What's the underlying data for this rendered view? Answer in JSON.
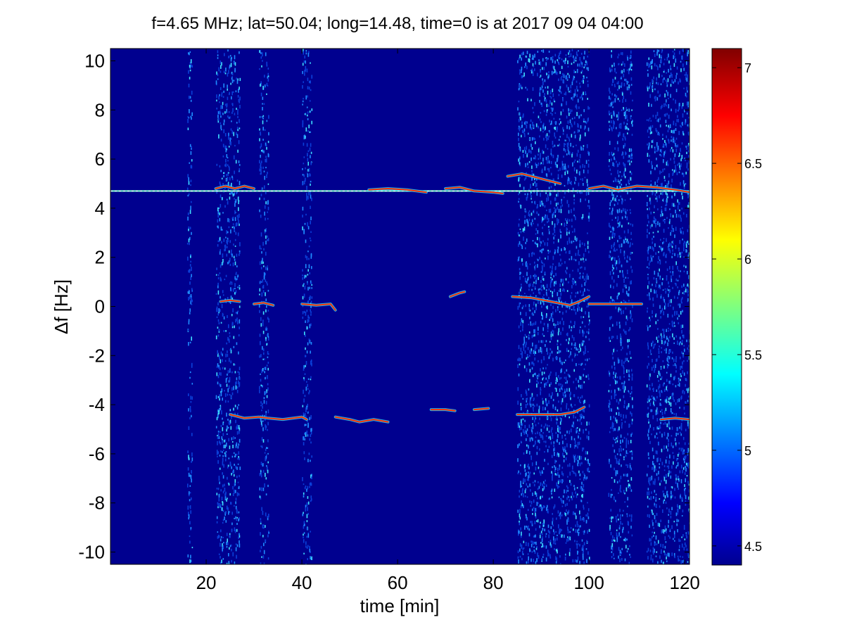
{
  "chart_data": [
    {
      "type": "heatmap",
      "title": "f=4.65 MHz;  lat=50.04; long=14.48, time=0 is at 2017 09 04 04:00",
      "xlabel": "time [min]",
      "ylabel": "Δf [Hz]",
      "xlim": [
        0,
        121
      ],
      "ylim": [
        -10.5,
        10.5
      ],
      "xticks": [
        "20",
        "40",
        "60",
        "80",
        "100",
        "120"
      ],
      "yticks": [
        "10",
        "8",
        "6",
        "4",
        "2",
        "0",
        "-2",
        "-4",
        "-6",
        "-8",
        "-10"
      ],
      "colorbar": {
        "range": [
          4.4,
          7.1
        ],
        "ticks": [
          "7",
          "6.5",
          "6",
          "5.5",
          "5",
          "4.5"
        ],
        "colormap": "jet"
      },
      "background_color": "#00008f",
      "features": [
        {
          "kind": "carrier-line",
          "y": 4.7,
          "x_range": [
            0,
            121
          ]
        },
        {
          "kind": "trace",
          "points": [
            [
              22,
              4.8
            ],
            [
              24,
              4.9
            ],
            [
              26,
              4.8
            ],
            [
              28,
              4.9
            ],
            [
              30,
              4.8
            ]
          ]
        },
        {
          "kind": "trace",
          "points": [
            [
              54,
              4.75
            ],
            [
              58,
              4.8
            ],
            [
              62,
              4.75
            ],
            [
              66,
              4.65
            ]
          ]
        },
        {
          "kind": "trace",
          "points": [
            [
              70,
              4.8
            ],
            [
              73,
              4.85
            ],
            [
              76,
              4.7
            ],
            [
              80,
              4.65
            ],
            [
              82,
              4.6
            ]
          ]
        },
        {
          "kind": "trace",
          "points": [
            [
              83,
              5.3
            ],
            [
              86,
              5.4
            ],
            [
              90,
              5.2
            ],
            [
              94,
              5.0
            ]
          ]
        },
        {
          "kind": "trace",
          "points": [
            [
              100,
              4.8
            ],
            [
              103,
              4.9
            ],
            [
              106,
              4.75
            ],
            [
              110,
              4.9
            ],
            [
              114,
              4.85
            ],
            [
              118,
              4.75
            ],
            [
              121,
              4.65
            ]
          ]
        },
        {
          "kind": "trace",
          "points": [
            [
              23,
              0.2
            ],
            [
              25,
              0.25
            ],
            [
              27,
              0.2
            ]
          ]
        },
        {
          "kind": "trace",
          "points": [
            [
              30,
              0.1
            ],
            [
              32,
              0.15
            ],
            [
              34,
              0.05
            ]
          ]
        },
        {
          "kind": "trace",
          "points": [
            [
              40,
              0.1
            ],
            [
              43,
              0.05
            ],
            [
              46,
              0.1
            ],
            [
              47,
              -0.15
            ]
          ]
        },
        {
          "kind": "trace",
          "points": [
            [
              71,
              0.4
            ],
            [
              73,
              0.55
            ],
            [
              74,
              0.6
            ]
          ]
        },
        {
          "kind": "trace",
          "points": [
            [
              84,
              0.4
            ],
            [
              88,
              0.35
            ],
            [
              92,
              0.2
            ],
            [
              96,
              0.05
            ],
            [
              98,
              0.2
            ],
            [
              100,
              0.4
            ]
          ]
        },
        {
          "kind": "trace",
          "points": [
            [
              100,
              0.1
            ],
            [
              106,
              0.1
            ],
            [
              111,
              0.1
            ]
          ]
        },
        {
          "kind": "trace",
          "points": [
            [
              25,
              -4.4
            ],
            [
              28,
              -4.55
            ],
            [
              31,
              -4.5
            ],
            [
              33,
              -4.55
            ],
            [
              36,
              -4.6
            ],
            [
              40,
              -4.5
            ],
            [
              41,
              -4.6
            ]
          ]
        },
        {
          "kind": "trace",
          "points": [
            [
              47,
              -4.5
            ],
            [
              50,
              -4.6
            ],
            [
              52,
              -4.7
            ],
            [
              55,
              -4.6
            ],
            [
              58,
              -4.7
            ]
          ]
        },
        {
          "kind": "trace",
          "points": [
            [
              67,
              -4.2
            ],
            [
              70,
              -4.2
            ],
            [
              72,
              -4.25
            ]
          ]
        },
        {
          "kind": "trace",
          "points": [
            [
              76,
              -4.2
            ],
            [
              79,
              -4.15
            ]
          ]
        },
        {
          "kind": "trace",
          "points": [
            [
              85,
              -4.4
            ],
            [
              90,
              -4.4
            ],
            [
              94,
              -4.4
            ],
            [
              97,
              -4.3
            ],
            [
              99,
              -4.1
            ]
          ]
        },
        {
          "kind": "trace",
          "points": [
            [
              115,
              -4.6
            ],
            [
              118,
              -4.55
            ],
            [
              121,
              -4.6
            ]
          ]
        }
      ],
      "noise_bands_min": [
        [
          16,
          17
        ],
        [
          22,
          27
        ],
        [
          31,
          33
        ],
        [
          40,
          42
        ],
        [
          85,
          100
        ],
        [
          104,
          109
        ],
        [
          112,
          121
        ]
      ]
    }
  ]
}
